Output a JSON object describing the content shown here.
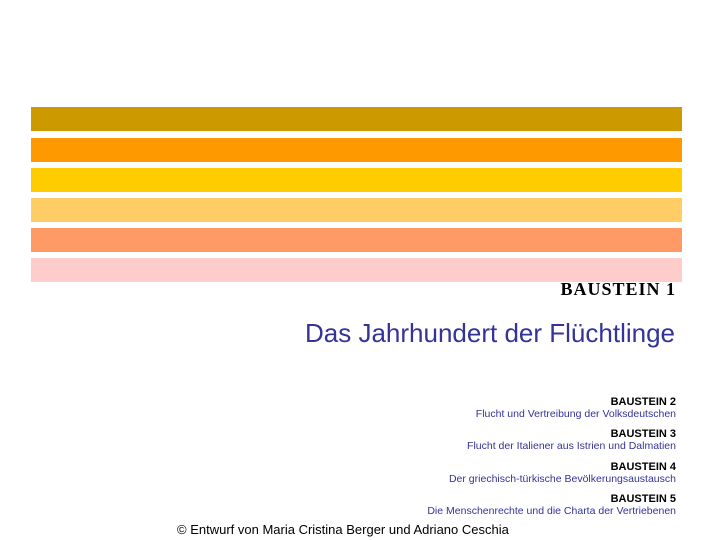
{
  "colors": {
    "stripes": [
      "#cc9900",
      "#ff9900",
      "#ffcc00",
      "#ffcc66",
      "#ff9966",
      "#ffcccc"
    ],
    "title": "#333399"
  },
  "slide": {
    "label": "BAUSTEIN 1",
    "title": "Das Jahrhundert der Flüchtlinge",
    "modules": [
      {
        "code": "BAUSTEIN 2",
        "desc": "Flucht und Vertreibung der Volksdeutschen"
      },
      {
        "code": "BAUSTEIN 3",
        "desc": "Flucht der Italiener aus Istrien und Dalmatien"
      },
      {
        "code": "BAUSTEIN 4",
        "desc": "Der griechisch-türkische Bevölkerungsaustausch"
      },
      {
        "code": "BAUSTEIN 5",
        "desc": "Die Menschenrechte und die Charta der Vertriebenen"
      }
    ],
    "credit": "© Entwurf von Maria Cristina Berger und Adriano Ceschia"
  }
}
